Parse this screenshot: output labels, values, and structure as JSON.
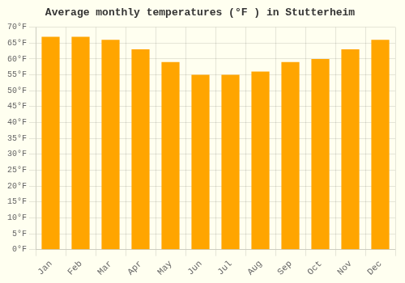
{
  "chart_data": {
    "type": "bar",
    "title": "Average monthly temperatures (°F ) in Stutterheim",
    "categories": [
      "Jan",
      "Feb",
      "Mar",
      "Apr",
      "May",
      "Jun",
      "Jul",
      "Aug",
      "Sep",
      "Oct",
      "Nov",
      "Dec"
    ],
    "values": [
      67,
      67,
      66,
      63,
      59,
      55,
      55,
      56,
      59,
      60,
      63,
      66
    ],
    "color": "#FFA500",
    "ylim": [
      0,
      70
    ],
    "yticks": [
      {
        "value": 0,
        "label": "0°F"
      },
      {
        "value": 5,
        "label": "5°F"
      },
      {
        "value": 10,
        "label": "10°F"
      },
      {
        "value": 15,
        "label": "15°F"
      },
      {
        "value": 20,
        "label": "20°F"
      },
      {
        "value": 25,
        "label": "25°F"
      },
      {
        "value": 30,
        "label": "30°F"
      },
      {
        "value": 35,
        "label": "35°F"
      },
      {
        "value": 40,
        "label": "40°F"
      },
      {
        "value": 45,
        "label": "45°F"
      },
      {
        "value": 50,
        "label": "50°F"
      },
      {
        "value": 55,
        "label": "55°F"
      },
      {
        "value": 60,
        "label": "60°F"
      },
      {
        "value": 65,
        "label": "65°F"
      },
      {
        "value": 70,
        "label": "70°F"
      }
    ],
    "grid": true
  }
}
